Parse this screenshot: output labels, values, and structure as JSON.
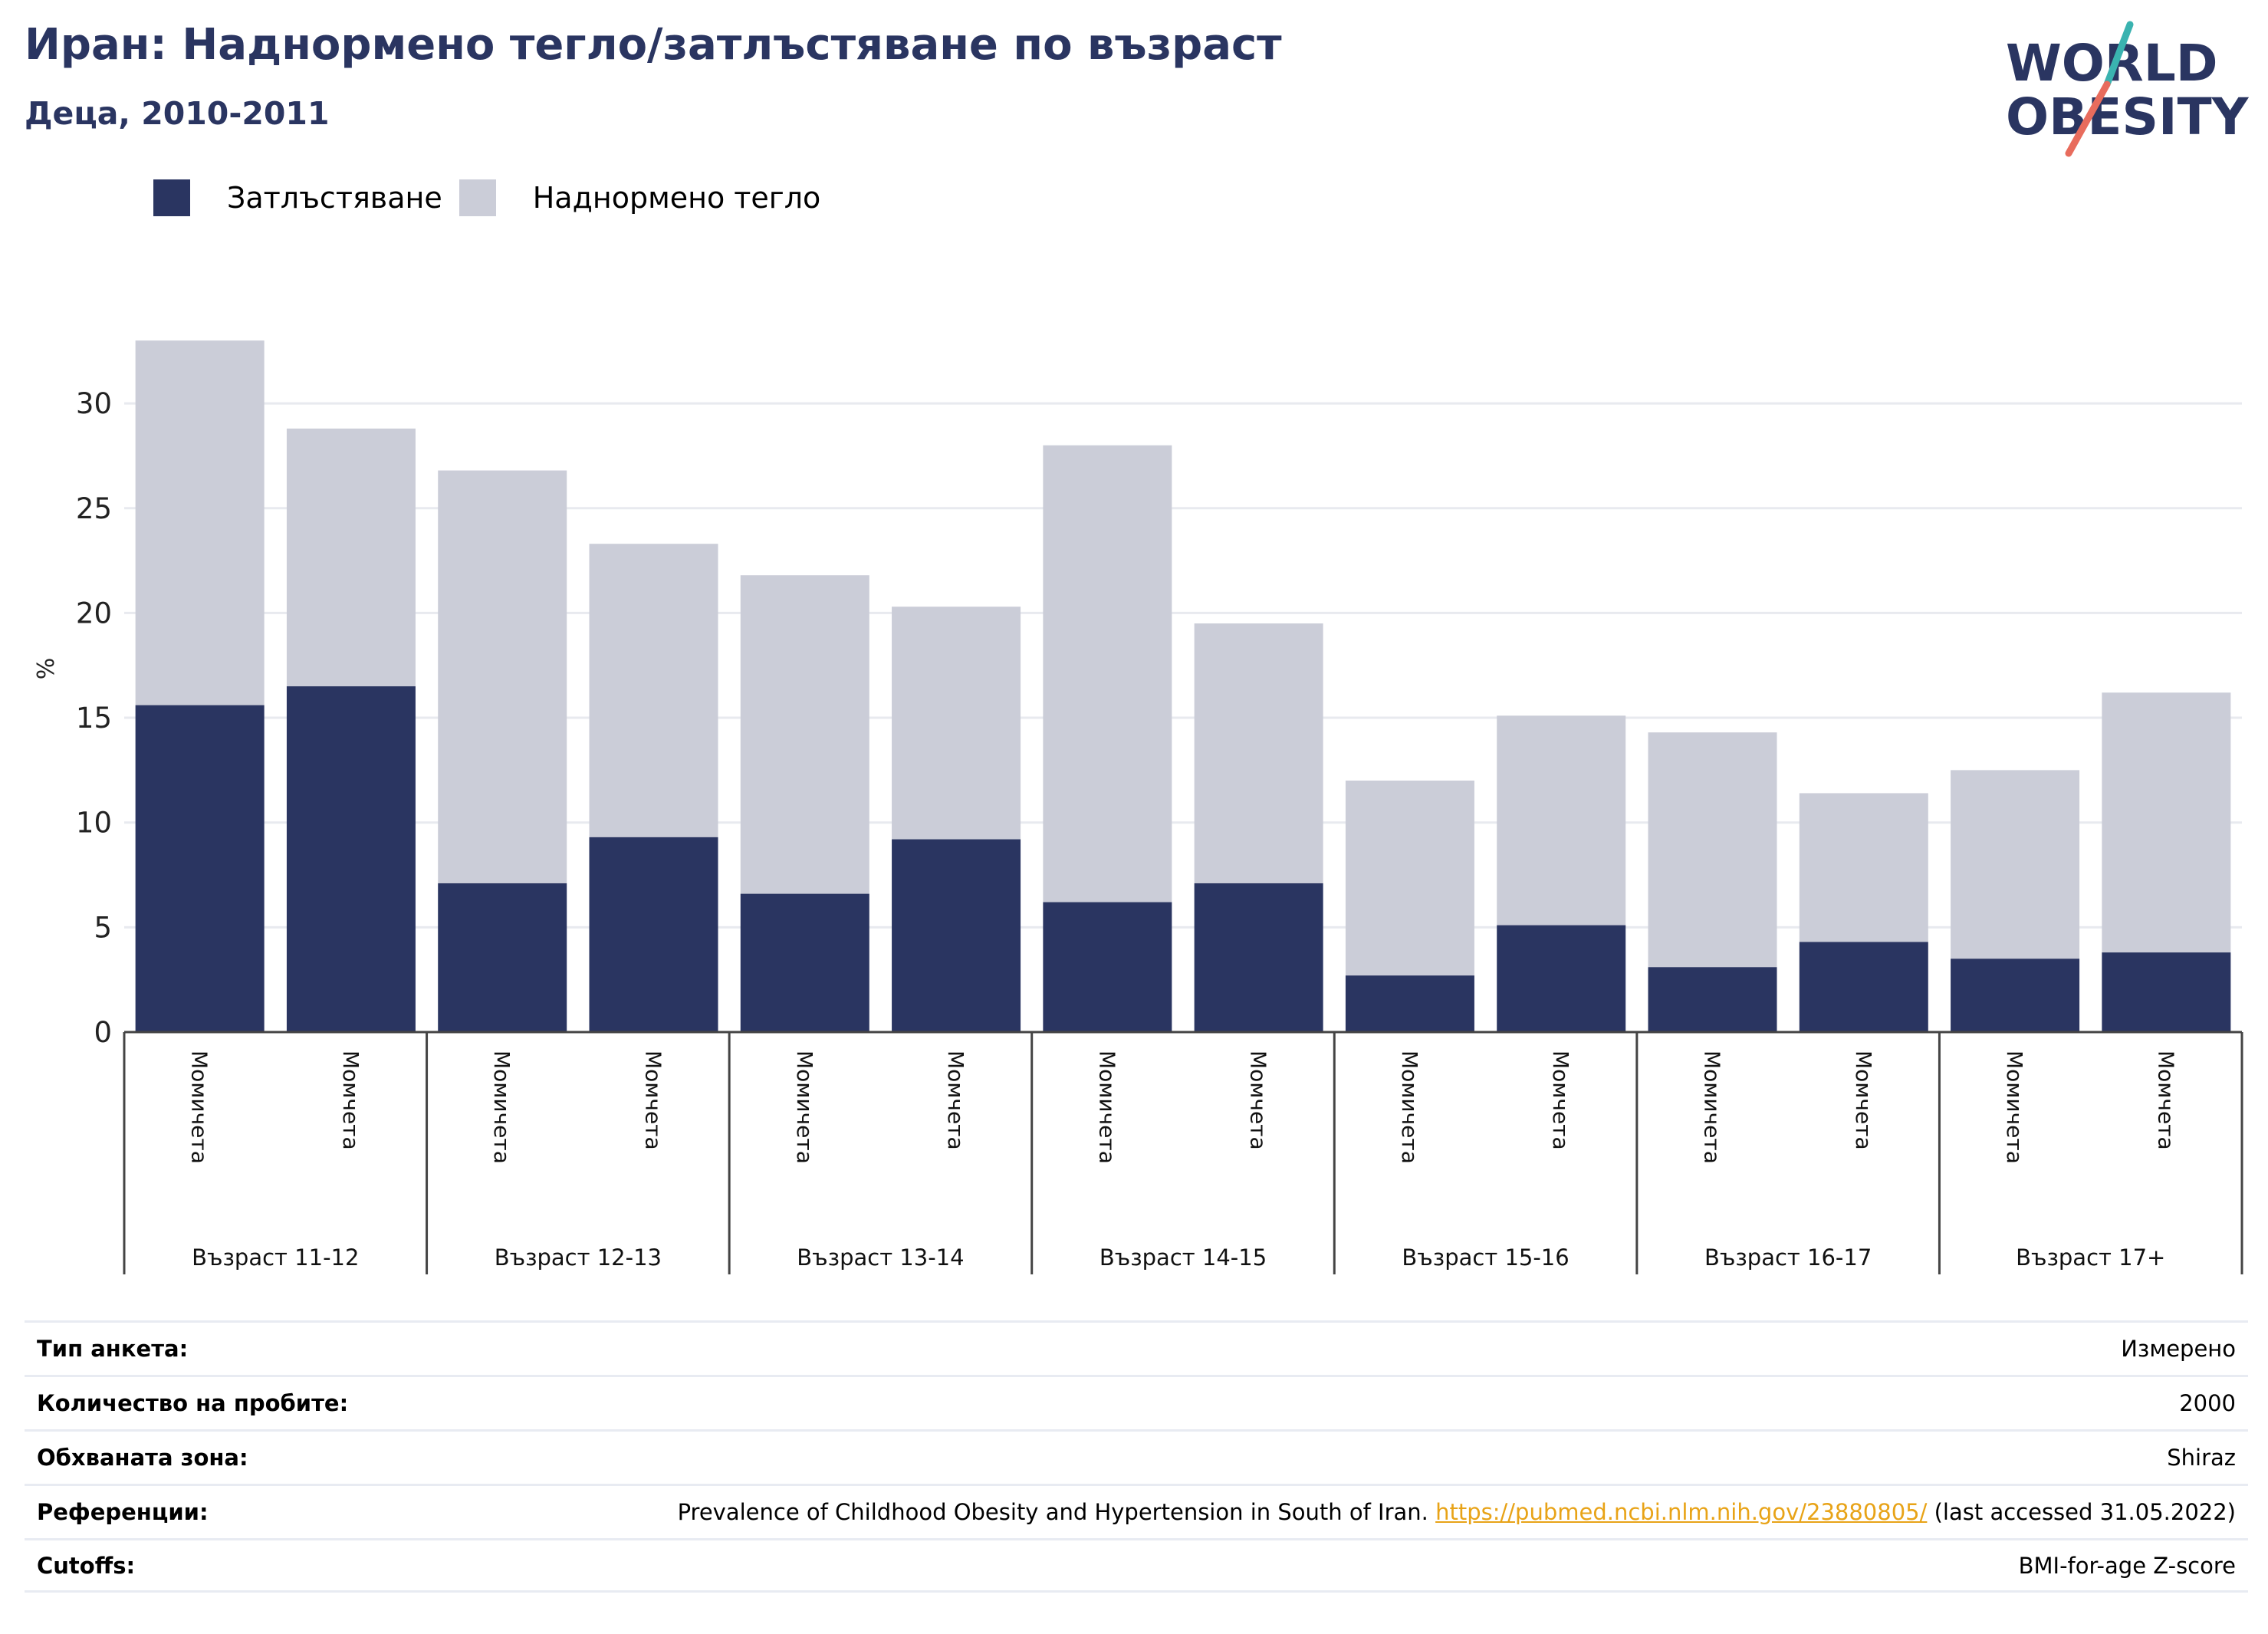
{
  "header": {
    "title": "Иран: Наднормено тегло/затлъстяване по възраст",
    "subtitle": "Деца, 2010-2011"
  },
  "logo": {
    "line1": "WORLD",
    "line2": "OBESITY"
  },
  "legend": {
    "obesity_label": "Затлъстяване",
    "overweight_label": "Наднормено тегло"
  },
  "colors": {
    "obesity": "#2a3561",
    "overweight": "#cbcdd8",
    "gridline": "#e8eaef",
    "axis": "#444444",
    "link": "#e8a317",
    "logo_teal": "#3ab3b0",
    "logo_coral": "#e86c5d"
  },
  "chart_data": {
    "type": "bar",
    "stacked": true,
    "ylabel": "%",
    "ylim": [
      0,
      33
    ],
    "yticks": [
      0,
      5,
      10,
      15,
      20,
      25,
      30
    ],
    "grid": true,
    "legend_position": "top-left",
    "categories": [
      "Момичета",
      "Момчета",
      "Момичета",
      "Момчета",
      "Момичета",
      "Момчета",
      "Момичета",
      "Момчета",
      "Момичета",
      "Момчета",
      "Момичета",
      "Момчета",
      "Момичета",
      "Момчета"
    ],
    "groups": [
      "Възраст 11-12",
      "Възраст 12-13",
      "Възраст 13-14",
      "Възраст 14-15",
      "Възраст 15-16",
      "Възраст 16-17",
      "Възраст 17+"
    ],
    "series": [
      {
        "name": "Затлъстяване",
        "values": [
          15.6,
          16.5,
          7.1,
          9.3,
          6.6,
          9.2,
          6.2,
          7.1,
          2.7,
          5.1,
          3.1,
          4.3,
          3.5,
          3.8
        ]
      },
      {
        "name": "Наднормено тегло",
        "values": [
          17.4,
          12.3,
          19.7,
          14.0,
          15.2,
          11.1,
          21.8,
          12.4,
          9.3,
          10.0,
          11.2,
          7.1,
          9.0,
          12.4
        ]
      }
    ]
  },
  "meta": {
    "survey_type": {
      "label": "Тип анкета:",
      "value": "Измерено"
    },
    "sample_size": {
      "label": "Количество на пробите:",
      "value": "2000"
    },
    "area": {
      "label": "Обхваната зона:",
      "value": "Shiraz"
    },
    "references": {
      "label": "Референции:",
      "text": "Prevalence of Childhood Obesity and Hypertension in South of Iran. ",
      "link": "https://pubmed.ncbi.nlm.nih.gov/23880805/",
      "suffix": " (last accessed 31.05.2022)"
    },
    "cutoffs": {
      "label": "Cutoffs:",
      "value": "BMI-for-age Z-score"
    }
  }
}
